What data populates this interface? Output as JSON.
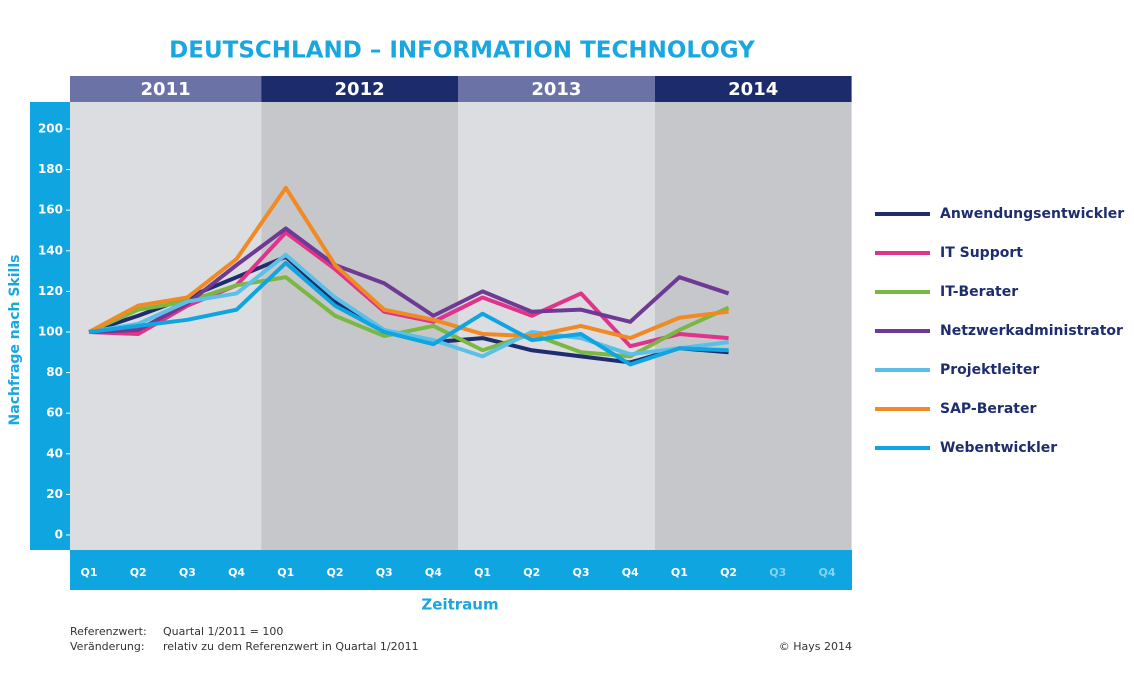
{
  "chart_data": {
    "type": "line",
    "title": "DEUTSCHLAND – INFORMATION TECHNOLOGY",
    "years": [
      "2011",
      "2012",
      "2013",
      "2014"
    ],
    "year_colors": [
      "#6a72a6",
      "#1c2b6b",
      "#6a72a6",
      "#1c2b6b"
    ],
    "categories": [
      "Q1",
      "Q2",
      "Q3",
      "Q4",
      "Q1",
      "Q2",
      "Q3",
      "Q4",
      "Q1",
      "Q2",
      "Q3",
      "Q4",
      "Q1",
      "Q2",
      "Q3",
      "Q4"
    ],
    "y_label": "Nachfrage nach Skills",
    "x_label": "Zeitraum",
    "ylim": [
      -7.4,
      213.3
    ],
    "yticks": [
      0,
      20,
      40,
      60,
      80,
      100,
      120,
      140,
      160,
      180,
      200
    ],
    "grid": false,
    "legend": "right",
    "series": [
      {
        "name": "Anwendungsentwickler",
        "color": "#1e2d6e",
        "values": [
          100,
          108,
          117,
          127,
          137,
          115,
          100,
          95,
          97,
          91,
          88,
          85,
          92,
          90,
          null,
          null
        ]
      },
      {
        "name": "IT Support",
        "color": "#e0338a",
        "values": [
          100,
          99,
          113,
          123,
          149,
          131,
          110,
          105,
          117,
          108,
          119,
          93,
          99,
          97,
          null,
          null
        ]
      },
      {
        "name": "IT-Berater",
        "color": "#7bb843",
        "values": [
          100,
          111,
          115,
          123,
          127,
          108,
          98,
          103,
          91,
          99,
          90,
          88,
          101,
          112,
          null,
          null
        ]
      },
      {
        "name": "Netzwerkadministrator",
        "color": "#6e3a94",
        "values": [
          100,
          101,
          114,
          133,
          151,
          133,
          124,
          108,
          120,
          110,
          111,
          105,
          127,
          119,
          null,
          null
        ]
      },
      {
        "name": "Projektleiter",
        "color": "#5bc0e8",
        "values": [
          100,
          104,
          115,
          119,
          138,
          117,
          101,
          96,
          88,
          100,
          97,
          89,
          92,
          95,
          null,
          null
        ]
      },
      {
        "name": "SAP-Berater",
        "color": "#f08a24",
        "values": [
          100,
          113,
          117,
          136,
          171,
          133,
          111,
          106,
          99,
          98,
          103,
          97,
          107,
          110,
          null,
          null
        ]
      },
      {
        "name": "Webentwickler",
        "color": "#0ea5e0",
        "values": [
          100,
          103,
          106,
          111,
          134,
          113,
          100,
          94,
          109,
          96,
          99,
          84,
          92,
          91,
          null,
          null
        ]
      }
    ],
    "footnotes": [
      {
        "label": "Referenzwert:",
        "text": "Quartal 1/2011 = 100"
      },
      {
        "label": "Veränderung:",
        "text": "relativ zu dem Referenzwert in Quartal 1/2011"
      }
    ],
    "source": "© Hays 2014"
  }
}
